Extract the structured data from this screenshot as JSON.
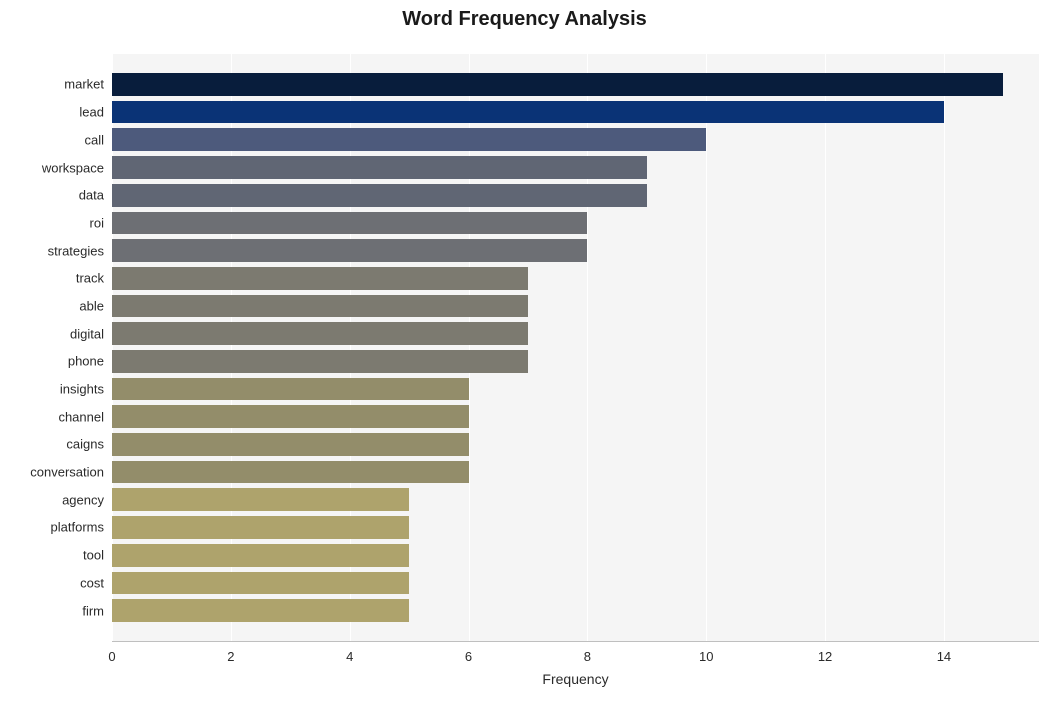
{
  "chart": {
    "type": "bar-horizontal",
    "title": "Word Frequency Analysis",
    "title_fontsize": 20,
    "title_fontweight": "bold",
    "title_color": "#1a1a1a",
    "background_color": "#ffffff",
    "plot_background_color": "#f5f5f5",
    "grid_color": "#ffffff",
    "axis_line_color": "#bfbfbf",
    "xlabel": "Frequency",
    "xlabel_fontsize": 14,
    "xlabel_color": "#2a2a2a",
    "xlim": [
      0,
      15.6
    ],
    "xtick_step": 2,
    "xticks": [
      0,
      2,
      4,
      6,
      8,
      10,
      12,
      14
    ],
    "tick_fontsize": 13,
    "tick_color": "#2a2a2a",
    "bar_height_ratio": 0.82,
    "bars": [
      {
        "label": "market",
        "value": 15,
        "color": "#081d3c"
      },
      {
        "label": "lead",
        "value": 14,
        "color": "#0a3376"
      },
      {
        "label": "call",
        "value": 10,
        "color": "#4d5a7c"
      },
      {
        "label": "workspace",
        "value": 9,
        "color": "#606674"
      },
      {
        "label": "data",
        "value": 9,
        "color": "#606674"
      },
      {
        "label": "roi",
        "value": 8,
        "color": "#6d6f74"
      },
      {
        "label": "strategies",
        "value": 8,
        "color": "#6d6f74"
      },
      {
        "label": "track",
        "value": 7,
        "color": "#7c7a70"
      },
      {
        "label": "able",
        "value": 7,
        "color": "#7c7a70"
      },
      {
        "label": "digital",
        "value": 7,
        "color": "#7c7a70"
      },
      {
        "label": "phone",
        "value": 7,
        "color": "#7c7a70"
      },
      {
        "label": "insights",
        "value": 6,
        "color": "#938d6a"
      },
      {
        "label": "channel",
        "value": 6,
        "color": "#938d6a"
      },
      {
        "label": "caigns",
        "value": 6,
        "color": "#938d6a"
      },
      {
        "label": "conversation",
        "value": 6,
        "color": "#938d6a"
      },
      {
        "label": "agency",
        "value": 5,
        "color": "#aea36c"
      },
      {
        "label": "platforms",
        "value": 5,
        "color": "#aea36c"
      },
      {
        "label": "tool",
        "value": 5,
        "color": "#aea36c"
      },
      {
        "label": "cost",
        "value": 5,
        "color": "#aea36c"
      },
      {
        "label": "firm",
        "value": 5,
        "color": "#aea36c"
      }
    ]
  }
}
